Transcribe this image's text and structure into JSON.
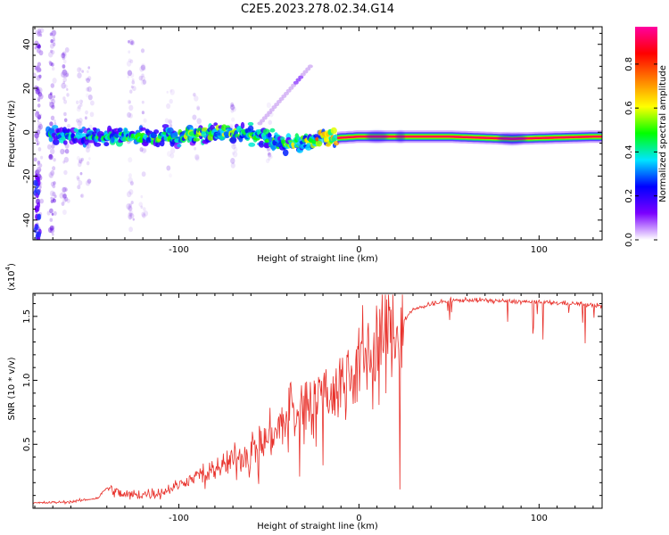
{
  "title": "C2E5.2023.278.02.34.G14",
  "colors": {
    "snr_line": "#e8302a",
    "axis": "#000000",
    "scatter_purple": "#8a2be2",
    "band_core": "#e8302a"
  },
  "colorbar": {
    "label": "Normalized spectral amplitude",
    "ticks": [
      "0.0",
      "0.2",
      "0.4",
      "0.6",
      "0.8"
    ],
    "stops": [
      "#ffffff",
      "#7b00ff",
      "#0000ff",
      "#00e5ff",
      "#00ff00",
      "#ffff00",
      "#ff8000",
      "#ff0000",
      "#ff00a0"
    ]
  },
  "chart_data": [
    {
      "type": "heatmap",
      "title": "C2E5.2023.278.02.34.G14",
      "xlabel": "Height of straight line (km)",
      "ylabel": "Frequency (Hz)",
      "xlim": [
        -181,
        135
      ],
      "ylim": [
        -49,
        48
      ],
      "xticks": [
        -100,
        0,
        100
      ],
      "xtick_labels": [
        "-100",
        "0",
        "100"
      ],
      "yticks": [
        -40,
        -20,
        0,
        20,
        40
      ],
      "ytick_labels": [
        "-40",
        "-20",
        "0",
        "20",
        "40"
      ],
      "colorbar_label": "Normalized spectral amplitude",
      "colorbar_range": [
        0.0,
        0.97
      ],
      "description_points": [
        {
          "x": -170,
          "freq": -1,
          "amp": 0.35
        },
        {
          "x": -140,
          "freq": -2,
          "amp": 0.4
        },
        {
          "x": -100,
          "freq": -2,
          "amp": 0.45
        },
        {
          "x": -80,
          "freq": 0,
          "amp": 0.5
        },
        {
          "x": -60,
          "freq": -1,
          "amp": 0.45
        },
        {
          "x": -40,
          "freq": -6,
          "amp": 0.45
        },
        {
          "x": -20,
          "freq": -3,
          "amp": 0.6
        },
        {
          "x": 0,
          "freq": -2,
          "amp": 0.85
        },
        {
          "x": 50,
          "freq": -2,
          "amp": 0.95
        },
        {
          "x": 85,
          "freq": -3,
          "amp": 0.9
        },
        {
          "x": 130,
          "freq": -2,
          "amp": 0.95
        }
      ]
    },
    {
      "type": "line",
      "xlabel": "Height of straight line (km)",
      "ylabel": "SNR (10 * v/v)",
      "yscale_label_prefix": "(x10",
      "yscale_label_exp": "4",
      "yscale_label_suffix": ")",
      "xlim": [
        -181,
        135
      ],
      "ylim": [
        0,
        1.68
      ],
      "xticks": [
        -100,
        0,
        100
      ],
      "xtick_labels": [
        "-100",
        "0",
        "100"
      ],
      "yticks": [
        0.5,
        1.0,
        1.5
      ],
      "ytick_labels": [
        "0.5",
        "1.0",
        "1.5"
      ],
      "series": [
        {
          "name": "SNR",
          "x": [
            -181,
            -160,
            -145,
            -140,
            -130,
            -110,
            -90,
            -80,
            -60,
            -50,
            -40,
            -30,
            -20,
            -10,
            0,
            10,
            20,
            30,
            40,
            50,
            60,
            80,
            100,
            120,
            135
          ],
          "values": [
            0.04,
            0.05,
            0.08,
            0.16,
            0.1,
            0.12,
            0.25,
            0.3,
            0.45,
            0.55,
            0.7,
            0.8,
            0.9,
            0.95,
            1.15,
            1.3,
            1.4,
            1.55,
            1.6,
            1.62,
            1.63,
            1.62,
            1.61,
            1.6,
            1.58
          ]
        }
      ]
    }
  ]
}
